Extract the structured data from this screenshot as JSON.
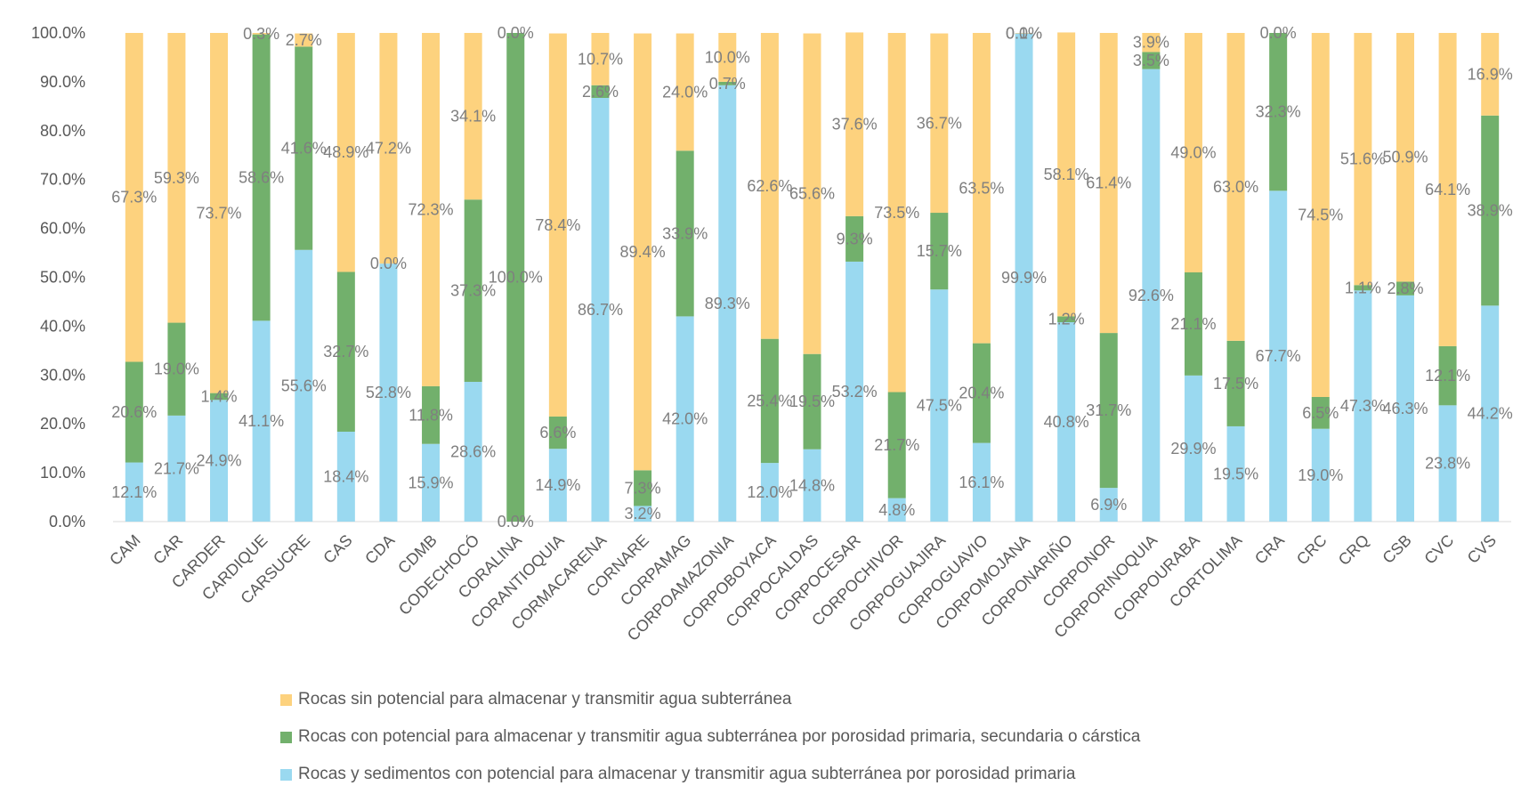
{
  "chart_data": {
    "type": "bar",
    "stacked": true,
    "categories": [
      "CAM",
      "CAR",
      "CARDER",
      "CARDIQUE",
      "CARSUCRE",
      "CAS",
      "CDA",
      "CDMB",
      "CODECHOCÓ",
      "CORALINA",
      "CORANTIOQUIA",
      "CORMACARENA",
      "CORNARE",
      "CORPAMAG",
      "CORPOAMAZONIA",
      "CORPOBOYACA",
      "CORPOCALDAS",
      "CORPOCESAR",
      "CORPOCHIVOR",
      "CORPOGUAJIRA",
      "CORPOGUAVIO",
      "CORPOMOJANA",
      "CORPONARIÑO",
      "CORPONOR",
      "CORPORINOQUIA",
      "CORPOURABA",
      "CORTOLIMA",
      "CRA",
      "CRC",
      "CRQ",
      "CSB",
      "CVC",
      "CVS"
    ],
    "series": [
      {
        "name": "Rocas y sedimentos con potencial para almacenar y transmitir agua subterránea por porosidad primaria",
        "color": "#9ad9f0",
        "values": [
          12.1,
          21.7,
          24.9,
          41.1,
          55.6,
          18.4,
          52.8,
          15.9,
          28.6,
          0.0,
          14.9,
          86.7,
          3.2,
          42.0,
          89.3,
          12.0,
          14.8,
          53.2,
          4.8,
          47.5,
          16.1,
          99.9,
          40.8,
          6.9,
          92.6,
          29.9,
          19.5,
          67.7,
          19.0,
          47.3,
          46.3,
          23.8,
          44.2
        ],
        "labels": [
          "12.1%",
          "21.7%",
          "24.9%",
          "41.1%",
          "55.6%",
          "18.4%",
          "52.8%",
          "15.9%",
          "28.6%",
          "0.0%",
          "14.9%",
          "86.7%",
          "3.2%",
          "42.0%",
          "89.3%",
          "12.0%",
          "14.8%",
          "53.2%",
          "4.8%",
          "47.5%",
          "16.1%",
          "99.9%",
          "40.8%",
          "6.9%",
          "92.6%",
          "29.9%",
          "19.5%",
          "67.7%",
          "19.0%",
          "47.3%",
          "46.3%",
          "23.8%",
          "44.2%"
        ]
      },
      {
        "name": "Rocas con potencial para almacenar y transmitir agua subterránea por porosidad primaria, secundaria o cárstica",
        "color": "#72b06c",
        "values": [
          20.6,
          19.0,
          1.4,
          58.6,
          41.6,
          32.7,
          0.0,
          11.8,
          37.3,
          100.0,
          6.6,
          2.6,
          7.3,
          33.9,
          0.7,
          25.4,
          19.5,
          9.3,
          21.7,
          15.7,
          20.4,
          0.0,
          1.2,
          31.7,
          3.5,
          21.1,
          17.5,
          32.3,
          6.5,
          1.1,
          2.8,
          12.1,
          38.9
        ],
        "labels": [
          "20.6%",
          "19.0%",
          "1.4%",
          "58.6%",
          "41.6%",
          "32.7%",
          "0.0%",
          "11.8%",
          "37.3%",
          "100.0%",
          "6.6%",
          "2.6%",
          "7.3%",
          "33.9%",
          "0.7%",
          "25.4%",
          "19.5%",
          "9.3%",
          "21.7%",
          "15.7%",
          "20.4%",
          "0.0%",
          "1.2%",
          "31.7%",
          "3.5%",
          "21.1%",
          "17.5%",
          "32.3%",
          "6.5%",
          "1.1%",
          "2.8%",
          "12.1%",
          "38.9%"
        ]
      },
      {
        "name": "Rocas sin potencial para almacenar y transmitir agua subterránea",
        "color": "#fdd27e",
        "values": [
          67.3,
          59.3,
          73.7,
          0.3,
          2.7,
          48.9,
          47.2,
          72.3,
          34.1,
          0.0,
          78.4,
          10.7,
          89.4,
          24.0,
          10.0,
          62.6,
          65.6,
          37.6,
          73.5,
          36.7,
          63.5,
          0.1,
          58.1,
          61.4,
          3.9,
          49.0,
          63.0,
          0.0,
          74.5,
          51.6,
          50.9,
          64.1,
          16.9
        ],
        "labels": [
          "67.3%",
          "59.3%",
          "73.7%",
          "0.3%",
          "2.7%",
          "48.9%",
          "47.2%",
          "72.3%",
          "34.1%",
          "0.0%",
          "78.4%",
          "10.7%",
          "89.4%",
          "24.0%",
          "10.0%",
          "62.6%",
          "65.6%",
          "37.6%",
          "73.5%",
          "36.7%",
          "63.5%",
          "0.1%",
          "58.1%",
          "61.4%",
          "3.9%",
          "49.0%",
          "63.0%",
          "0.0%",
          "74.5%",
          "51.6%",
          "50.9%",
          "64.1%",
          "16.9%"
        ]
      }
    ],
    "ylim": [
      0,
      100
    ],
    "yticks": [
      "0.0%",
      "10.0%",
      "20.0%",
      "30.0%",
      "40.0%",
      "50.0%",
      "60.0%",
      "70.0%",
      "80.0%",
      "90.0%",
      "100.0%"
    ],
    "grid": false,
    "legend_position": "bottom",
    "title": "",
    "xlabel": "",
    "ylabel": ""
  },
  "legend": {
    "items": [
      {
        "label": "Rocas sin potencial para almacenar y transmitir agua subterránea",
        "color": "#fdd27e"
      },
      {
        "label": "Rocas con potencial para almacenar y transmitir agua subterránea por porosidad primaria, secundaria o cárstica",
        "color": "#72b06c"
      },
      {
        "label": "Rocas y sedimentos con potencial para almacenar y transmitir agua subterránea por porosidad primaria",
        "color": "#9ad9f0"
      }
    ]
  }
}
